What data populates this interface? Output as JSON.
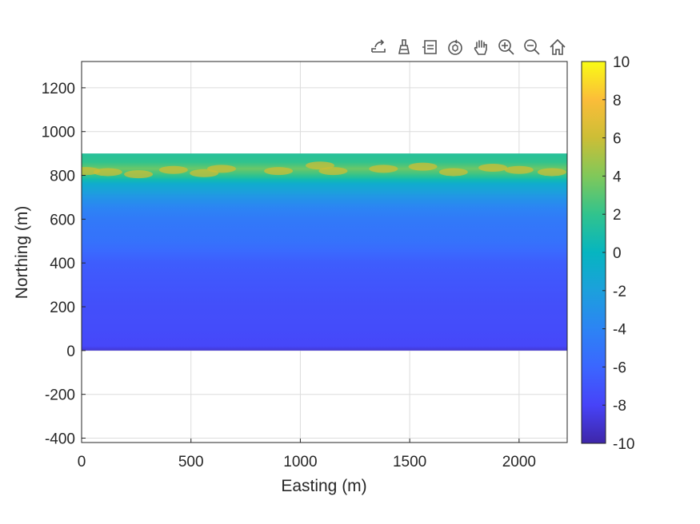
{
  "toolbar": {
    "icons": [
      "export-icon",
      "brush-icon",
      "data-tips-icon",
      "rotate-3d-icon",
      "pan-hand-icon",
      "zoom-in-icon",
      "zoom-out-icon",
      "home-icon"
    ]
  },
  "chart_data": {
    "type": "heatmap",
    "title": "",
    "xlabel": "Easting (m)",
    "ylabel": "Northing (m)",
    "xlim": [
      0,
      2220
    ],
    "ylim": [
      -420,
      1320
    ],
    "xticks": [
      "0",
      "500",
      "1000",
      "1500",
      "2000"
    ],
    "yticks": [
      "-400",
      "-200",
      "0",
      "200",
      "400",
      "600",
      "800",
      "1000",
      "1200"
    ],
    "grid": true,
    "colormap": "parula",
    "colorbar": {
      "limits": [
        -10,
        10
      ],
      "ticks": [
        "-10",
        "-8",
        "-6",
        "-4",
        "-2",
        "0",
        "2",
        "4",
        "6",
        "8",
        "10"
      ]
    },
    "data_extent": {
      "x": [
        0,
        2220
      ],
      "y": [
        0,
        900
      ]
    },
    "elevation_profile": {
      "northing": [
        0,
        20,
        100,
        200,
        300,
        400,
        450,
        500,
        550,
        600,
        650,
        700,
        730,
        760,
        780,
        800,
        830,
        860,
        900
      ],
      "value": [
        -9,
        -7.8,
        -7.5,
        -7.3,
        -7,
        -6.5,
        -5.8,
        -5.2,
        -5,
        -4.7,
        -4,
        -2.8,
        -1.8,
        -1,
        0.5,
        2,
        3.5,
        2,
        1.5
      ]
    },
    "colors": {
      "axes": "#262626",
      "grid": "#dcdcdc"
    }
  }
}
